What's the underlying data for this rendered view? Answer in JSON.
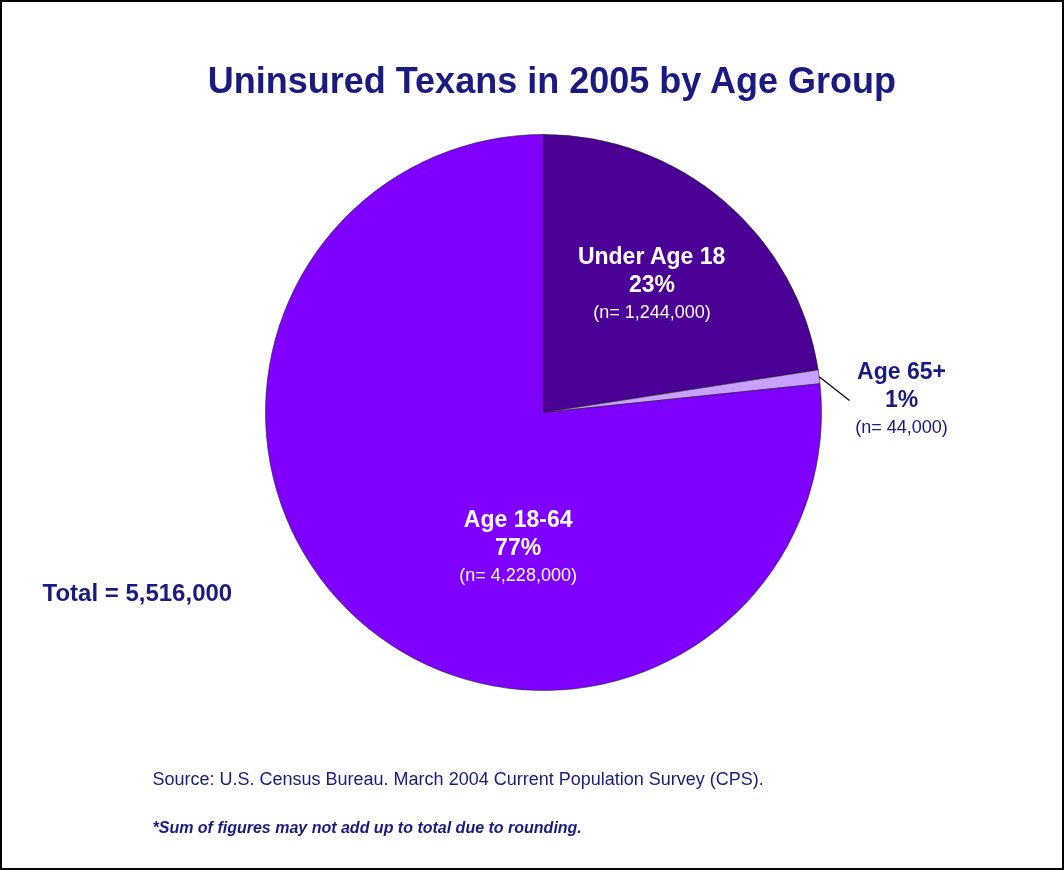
{
  "chart_data": {
    "type": "pie",
    "title": "Uninsured Texans in 2005 by Age Group",
    "categories": [
      "Under Age 18",
      "Age 65+",
      "Age 18-64"
    ],
    "values": [
      1244000,
      44000,
      4228000
    ],
    "colors": [
      "#4b0096",
      "#c8a0ff",
      "#8000ff"
    ],
    "value_labels": [
      "23%\n(n= 1,244,000)",
      "1%\n(n= 44,000)",
      "77%\n(n= 4,228,000)"
    ],
    "legend": false,
    "annotations": [
      "Total = 5,516,000",
      "Source:  U.S. Census Bureau.  March 2004 Current Population Survey (CPS).",
      "*Sum of figures may not add up to total due to rounding."
    ]
  }
}
